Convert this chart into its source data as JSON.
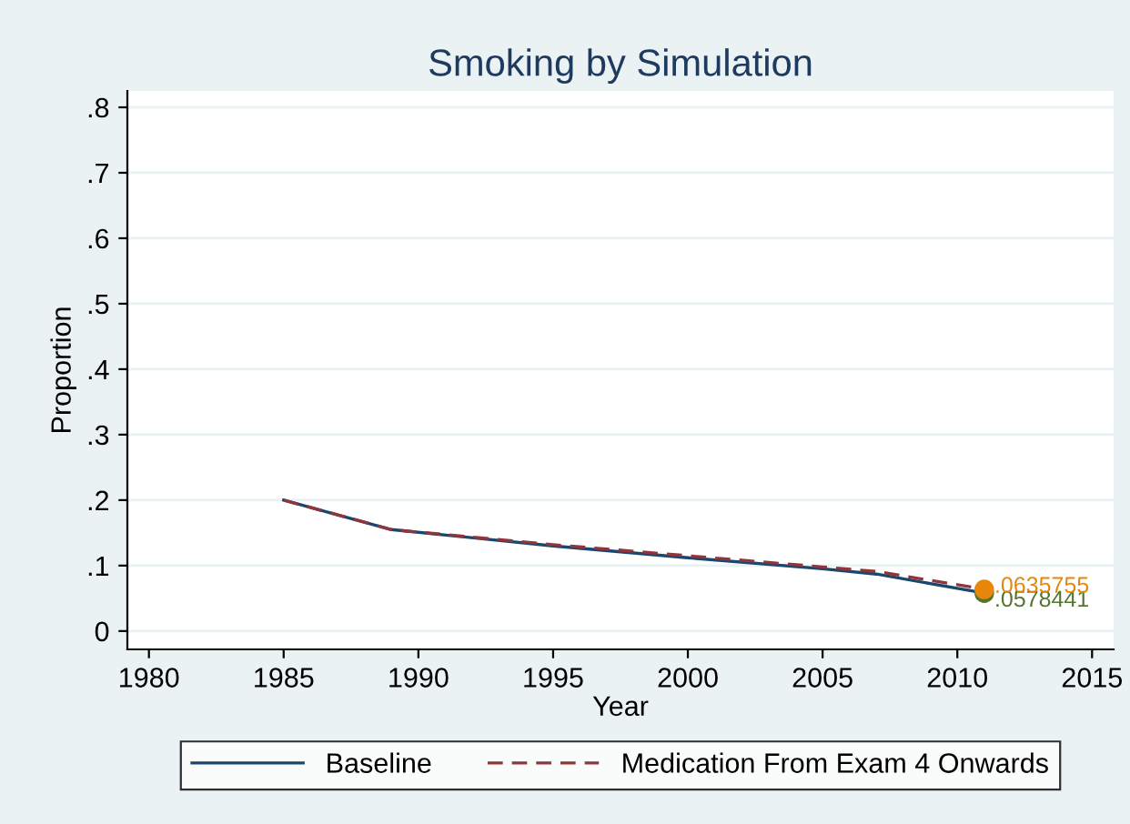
{
  "chart_data": {
    "type": "line",
    "title": "Smoking by Simulation",
    "xlabel": "Year",
    "ylabel": "Proportion",
    "xlim": [
      1979.2,
      2015.8
    ],
    "xticks": [
      1980,
      1985,
      1990,
      1995,
      2000,
      2005,
      2010,
      2015
    ],
    "ylim": [
      -0.028,
      0.825
    ],
    "yticks": [
      {
        "value": 0,
        "label": "0"
      },
      {
        "value": 0.1,
        "label": ".1"
      },
      {
        "value": 0.2,
        "label": ".2"
      },
      {
        "value": 0.3,
        "label": ".3"
      },
      {
        "value": 0.4,
        "label": ".4"
      },
      {
        "value": 0.5,
        "label": ".5"
      },
      {
        "value": 0.6,
        "label": ".6"
      },
      {
        "value": 0.7,
        "label": ".7"
      },
      {
        "value": 0.8,
        "label": ".8"
      }
    ],
    "grid": "y",
    "legend": "bottom",
    "series": [
      {
        "name": "Baseline",
        "color": "#1a476f",
        "line_style": "solid",
        "x": [
          1985,
          1989,
          1995,
          2000,
          2005,
          2007,
          2011
        ],
        "values": [
          0.2,
          0.155,
          0.13,
          0.112,
          0.095,
          0.087,
          0.058
        ]
      },
      {
        "name": "Medication From Exam 4 Onwards",
        "color": "#90353b",
        "line_style": "dashed",
        "x": [
          1985,
          1989,
          1995,
          2000,
          2005,
          2007,
          2011
        ],
        "values": [
          0.2,
          0.155,
          0.132,
          0.115,
          0.098,
          0.091,
          0.064
        ]
      },
      {
        "type": "scatter",
        "color": "#55752f",
        "marker": "circle",
        "x": [
          2011
        ],
        "values": [
          0.0578441
        ],
        "value_labels": [
          ".0578441"
        ]
      },
      {
        "type": "scatter",
        "color": "#e8860c",
        "marker": "circle",
        "x": [
          2011
        ],
        "values": [
          0.0635755
        ],
        "value_labels": [
          ".0635755"
        ]
      }
    ]
  }
}
